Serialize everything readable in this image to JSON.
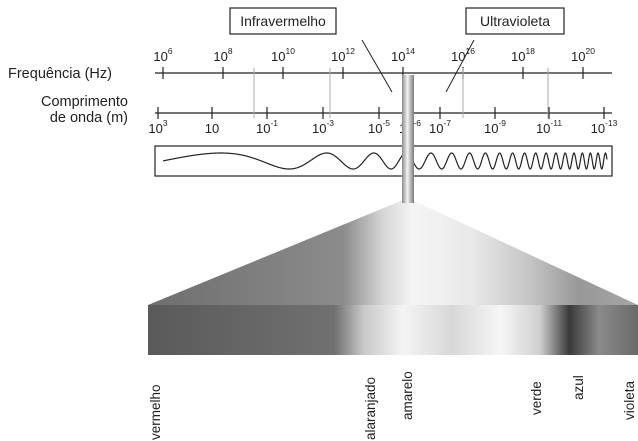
{
  "frequency_axis": {
    "label": "Frequência (Hz)",
    "ticks": [
      {
        "base": "10",
        "exp": "6"
      },
      {
        "base": "10",
        "exp": "8"
      },
      {
        "base": "10",
        "exp": "10"
      },
      {
        "base": "10",
        "exp": "12"
      },
      {
        "base": "10",
        "exp": "14"
      },
      {
        "base": "10",
        "exp": "16"
      },
      {
        "base": "10",
        "exp": "18"
      },
      {
        "base": "10",
        "exp": "20"
      }
    ]
  },
  "wavelength_axis": {
    "label_line1": "Comprimento",
    "label_line2": "de onda (m)",
    "ticks": [
      {
        "base": "10",
        "exp": "3"
      },
      {
        "base": "10",
        "exp": ""
      },
      {
        "base": "10",
        "exp": "-1"
      },
      {
        "base": "10",
        "exp": "-3"
      },
      {
        "base": "10",
        "exp": "-5"
      },
      {
        "base": "10",
        "exp": "-6"
      },
      {
        "base": "10",
        "exp": "-7"
      },
      {
        "base": "10",
        "exp": "-9"
      },
      {
        "base": "10",
        "exp": "-11"
      },
      {
        "base": "10",
        "exp": "-13"
      }
    ]
  },
  "region_labels": {
    "infrared": "Infravermelho",
    "ultraviolet": "Ultravioleta"
  },
  "visible_colors": [
    "vermelho",
    "alaranjado",
    "amarelo",
    "verde",
    "azul",
    "violeta"
  ],
  "colors": {
    "ink": "#222222",
    "band_dark": "#555555",
    "band_light": "#f2f2f2"
  }
}
